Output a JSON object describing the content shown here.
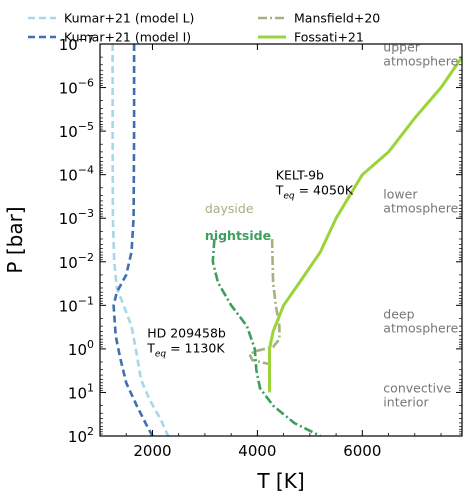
{
  "chart_data": {
    "type": "line",
    "xlabel": "T [K]",
    "ylabel": "P [bar]",
    "xlim": [
      1000,
      7900
    ],
    "ylim": [
      100,
      1e-07
    ],
    "y_scale": "log",
    "y_inverted": true,
    "x_ticks": [
      {
        "value": 2000,
        "label": "2000"
      },
      {
        "value": 4000,
        "label": "4000"
      },
      {
        "value": 6000,
        "label": "6000"
      }
    ],
    "y_ticks": [
      {
        "value": 1e-07,
        "base": "10",
        "exp": "−7"
      },
      {
        "value": 1e-06,
        "base": "10",
        "exp": "−6"
      },
      {
        "value": 1e-05,
        "base": "10",
        "exp": "−5"
      },
      {
        "value": 0.0001,
        "base": "10",
        "exp": "−4"
      },
      {
        "value": 0.001,
        "base": "10",
        "exp": "−3"
      },
      {
        "value": 0.01,
        "base": "10",
        "exp": "−2"
      },
      {
        "value": 0.1,
        "base": "10",
        "exp": "−1"
      },
      {
        "value": 1,
        "base": "10",
        "exp": "0"
      },
      {
        "value": 10,
        "base": "10",
        "exp": "1"
      },
      {
        "value": 100,
        "base": "10",
        "exp": "2"
      }
    ],
    "grid": false,
    "legend_position": "top",
    "series": [
      {
        "name": "Kumar+21 (model L)",
        "color": "#a6d8ea",
        "dash": "dashed",
        "points": [
          [
            1240,
            1e-07
          ],
          [
            1240,
            1e-05
          ],
          [
            1245,
            0.001
          ],
          [
            1270,
            0.01
          ],
          [
            1320,
            0.04
          ],
          [
            1450,
            0.1
          ],
          [
            1600,
            0.3
          ],
          [
            1700,
            1.3
          ],
          [
            1780,
            5
          ],
          [
            1950,
            15
          ],
          [
            2150,
            40
          ],
          [
            2300,
            100
          ]
        ]
      },
      {
        "name": "Kumar+21 (model I)",
        "color": "#3e6fb0",
        "dash": "dashed",
        "points": [
          [
            1650,
            1e-07
          ],
          [
            1650,
            1e-05
          ],
          [
            1640,
            0.001
          ],
          [
            1600,
            0.006
          ],
          [
            1500,
            0.02
          ],
          [
            1320,
            0.05
          ],
          [
            1260,
            0.1
          ],
          [
            1300,
            0.5
          ],
          [
            1380,
            1.5
          ],
          [
            1500,
            6
          ],
          [
            1700,
            20
          ],
          [
            1900,
            60
          ],
          [
            2000,
            100
          ]
        ]
      },
      {
        "name": "Mansfield+20 dayside",
        "label": "dayside",
        "color": "#a4b27e",
        "dash": "dashdot",
        "points": [
          [
            4280,
            0.003
          ],
          [
            4290,
            0.01
          ],
          [
            4300,
            0.03
          ],
          [
            4350,
            0.1
          ],
          [
            4420,
            0.3
          ],
          [
            4420,
            0.6
          ],
          [
            4300,
            0.9
          ],
          [
            4000,
            1.1
          ],
          [
            3850,
            1.3
          ],
          [
            3900,
            1.8
          ],
          [
            4200,
            2.2
          ]
        ]
      },
      {
        "name": "Mansfield+20 nightside",
        "label": "nightside",
        "color": "#3e9e5e",
        "dash": "dashdot",
        "points": [
          [
            3180,
            0.003
          ],
          [
            3150,
            0.01
          ],
          [
            3250,
            0.03
          ],
          [
            3500,
            0.1
          ],
          [
            3800,
            0.3
          ],
          [
            3950,
            1
          ],
          [
            3980,
            3
          ],
          [
            4050,
            8
          ],
          [
            4300,
            20
          ],
          [
            4700,
            50
          ],
          [
            5200,
            100
          ]
        ]
      },
      {
        "name": "Fossati+21",
        "color": "#9bd43a",
        "dash": "solid",
        "points": [
          [
            7900,
            2e-07
          ],
          [
            7500,
            1e-06
          ],
          [
            7000,
            5e-06
          ],
          [
            6500,
            3e-05
          ],
          [
            6000,
            0.0001
          ],
          [
            5500,
            0.001
          ],
          [
            5200,
            0.006
          ],
          [
            4800,
            0.03
          ],
          [
            4500,
            0.1
          ],
          [
            4300,
            0.4
          ],
          [
            4230,
            1
          ],
          [
            4230,
            3
          ],
          [
            4230,
            10
          ]
        ]
      }
    ],
    "legend": [
      {
        "series": 0,
        "label": "Kumar+21 (model L)"
      },
      {
        "series": 1,
        "label": "Kumar+21 (model I)"
      },
      {
        "series": 2,
        "label": "Mansfield+20"
      },
      {
        "series": 4,
        "label": "Fossati+21"
      }
    ],
    "region_labels": [
      {
        "lines": [
          "upper",
          "atmosphere"
        ],
        "x": 6400,
        "p": 1.5e-07
      },
      {
        "lines": [
          "lower",
          "atmosphere"
        ],
        "x": 6400,
        "p": 0.00035
      },
      {
        "lines": [
          "deep",
          "atmosphere"
        ],
        "x": 6400,
        "p": 0.2
      },
      {
        "lines": [
          "convective",
          "interior"
        ],
        "x": 6400,
        "p": 10
      }
    ],
    "annotations": {
      "kelt": {
        "name": "KELT-9b",
        "teq_label": "T",
        "teq_sub": "eq",
        "teq_value": " = 4050K"
      },
      "hd": {
        "name": "HD 209458b",
        "teq_label": "T",
        "teq_sub": "eq",
        "teq_value": " = 1130K"
      }
    }
  }
}
